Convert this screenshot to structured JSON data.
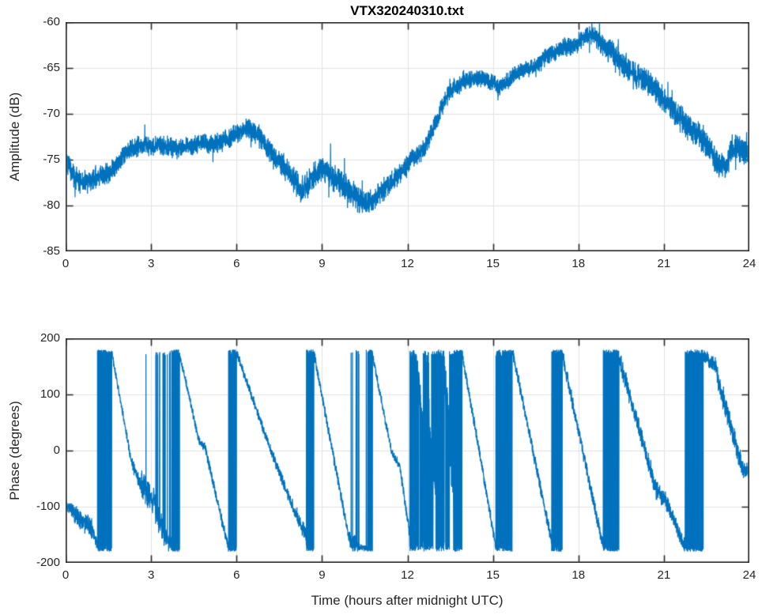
{
  "figure": {
    "title": "VTX320240310.txt",
    "background": "#ffffff",
    "axis_color": "#262626",
    "grid_color": "#e2e2e2",
    "trace_color": "#0072BD"
  },
  "chart_data": [
    {
      "type": "line",
      "title": "VTX320240310.txt",
      "xlabel": "",
      "ylabel": "Amplitude (dB)",
      "xlim": [
        0,
        24
      ],
      "ylim": [
        -85,
        -60
      ],
      "xticks": [
        0,
        3,
        6,
        9,
        12,
        15,
        18,
        21,
        24
      ],
      "yticks": [
        -85,
        -80,
        -75,
        -70,
        -65,
        -60
      ],
      "grid": true,
      "legend": null,
      "series_color": "#0072BD",
      "series_name": "amplitude",
      "trend_points": {
        "hours": [
          0,
          0.15,
          0.35,
          0.6,
          0.9,
          1.2,
          1.5,
          1.8,
          2.1,
          2.4,
          2.7,
          3.0,
          3.3,
          3.6,
          3.9,
          4.2,
          4.5,
          4.8,
          5.1,
          5.4,
          5.7,
          6.0,
          6.3,
          6.6,
          6.9,
          7.2,
          7.5,
          7.8,
          8.1,
          8.3,
          8.5,
          8.7,
          9.0,
          9.2,
          9.5,
          9.8,
          10.1,
          10.4,
          10.6,
          10.9,
          11.2,
          11.5,
          11.8,
          12.1,
          12.4,
          12.6,
          12.8,
          13.0,
          13.2,
          13.4,
          13.6,
          13.9,
          14.2,
          14.5,
          14.8,
          15.0,
          15.2,
          15.4,
          15.6,
          15.8,
          16.0,
          16.3,
          16.6,
          16.9,
          17.2,
          17.5,
          17.8,
          18.0,
          18.2,
          18.45,
          18.6,
          18.8,
          19.0,
          19.2,
          19.4,
          19.6,
          19.8,
          20.0,
          20.3,
          20.6,
          20.9,
          21.2,
          21.5,
          21.8,
          22.1,
          22.4,
          22.7,
          23.0,
          23.2,
          23.4,
          23.6,
          23.8,
          24.0
        ],
        "db": [
          -74.5,
          -76.0,
          -77.0,
          -77.6,
          -77.2,
          -76.8,
          -76.5,
          -75.5,
          -74.3,
          -73.7,
          -73.4,
          -73.6,
          -73.3,
          -73.7,
          -73.9,
          -73.6,
          -73.4,
          -73.2,
          -73.3,
          -73.1,
          -72.7,
          -72.1,
          -71.7,
          -71.9,
          -72.8,
          -74.1,
          -75.2,
          -76.2,
          -77.5,
          -78.6,
          -77.8,
          -76.6,
          -75.8,
          -76.3,
          -77.2,
          -77.9,
          -78.7,
          -79.6,
          -79.9,
          -79.0,
          -78.2,
          -77.3,
          -76.3,
          -75.2,
          -74.4,
          -73.6,
          -72.4,
          -70.8,
          -69.3,
          -68.0,
          -67.2,
          -66.7,
          -66.3,
          -66.2,
          -66.3,
          -66.6,
          -67.2,
          -66.9,
          -66.1,
          -65.6,
          -65.3,
          -65.0,
          -64.5,
          -63.8,
          -63.3,
          -62.7,
          -62.6,
          -62.2,
          -61.7,
          -61.4,
          -61.7,
          -62.4,
          -63.0,
          -63.4,
          -64.2,
          -64.9,
          -65.2,
          -65.7,
          -66.3,
          -67.1,
          -68.1,
          -69.2,
          -70.3,
          -71.2,
          -71.9,
          -72.8,
          -74.2,
          -76.0,
          -75.6,
          -73.9,
          -73.8,
          -74.3,
          -74.2
        ]
      },
      "noise_band_db": {
        "hours": [
          0,
          2,
          6,
          8,
          10,
          12,
          14,
          16,
          18,
          19.5,
          21,
          23,
          24
        ],
        "halfwidth": [
          1.3,
          1.0,
          1.0,
          1.4,
          1.4,
          1.1,
          0.9,
          0.9,
          1.0,
          1.3,
          1.4,
          1.5,
          1.3
        ]
      }
    },
    {
      "type": "line",
      "title": "",
      "xlabel": "Time (hours after midnight UTC)",
      "ylabel": "Phase (degrees)",
      "xlim": [
        0,
        24
      ],
      "ylim": [
        -200,
        200
      ],
      "xticks": [
        0,
        3,
        6,
        9,
        12,
        15,
        18,
        21,
        24
      ],
      "yticks": [
        -200,
        -100,
        0,
        100,
        200
      ],
      "grid": true,
      "legend": null,
      "series_color": "#0072BD",
      "series_name": "phase",
      "wrap_degrees": 180,
      "segments": [
        {
          "type": "noise",
          "t0": 0.0,
          "t1": 0.3,
          "v0": -95,
          "v1": -110,
          "amp": 14
        },
        {
          "type": "noise",
          "t0": 0.3,
          "t1": 0.7,
          "v0": -112,
          "v1": -130,
          "amp": 20
        },
        {
          "type": "noise",
          "t0": 0.7,
          "t1": 0.95,
          "v0": -125,
          "v1": -142,
          "amp": 22
        },
        {
          "type": "ramp",
          "t0": 0.95,
          "t1": 1.12,
          "v0": -142,
          "v1": -170,
          "amp": 14
        },
        {
          "type": "band",
          "t0": 1.12,
          "t1": 1.62,
          "amp": 14
        },
        {
          "type": "ramp",
          "t0": 1.62,
          "t1": 2.3,
          "v0": 176,
          "v1": -18,
          "amp": 10
        },
        {
          "type": "ramp",
          "t0": 2.3,
          "t1": 2.62,
          "v0": -18,
          "v1": -60,
          "amp": 13
        },
        {
          "type": "spikes",
          "t0": 2.62,
          "t1": 3.15,
          "v0": -60,
          "v1": -95,
          "amp": 30,
          "p": 0.04
        },
        {
          "type": "spikes",
          "t0": 3.15,
          "t1": 3.5,
          "v0": -108,
          "v1": -152,
          "amp": 30,
          "p": 0.12
        },
        {
          "type": "spikes",
          "t0": 3.5,
          "t1": 3.73,
          "v0": -152,
          "v1": -170,
          "amp": 20,
          "p": 0.08
        },
        {
          "type": "band",
          "t0": 3.73,
          "t1": 4.0,
          "amp": 12
        },
        {
          "type": "ramp",
          "t0": 4.0,
          "t1": 4.68,
          "v0": 172,
          "v1": 18,
          "amp": 10
        },
        {
          "type": "noise",
          "t0": 4.68,
          "t1": 4.92,
          "v0": 18,
          "v1": 2,
          "amp": 10
        },
        {
          "type": "ramp",
          "t0": 4.92,
          "t1": 5.72,
          "v0": 0,
          "v1": -176,
          "amp": 12
        },
        {
          "type": "band",
          "t0": 5.72,
          "t1": 6.0,
          "amp": 13
        },
        {
          "type": "ramp",
          "t0": 6.0,
          "t1": 7.2,
          "v0": 175,
          "v1": 0,
          "amp": 10
        },
        {
          "type": "ramp",
          "t0": 7.2,
          "t1": 8.12,
          "v0": 0,
          "v1": -118,
          "amp": 12
        },
        {
          "type": "noise",
          "t0": 8.12,
          "t1": 8.45,
          "v0": -118,
          "v1": -152,
          "amp": 17
        },
        {
          "type": "band",
          "t0": 8.45,
          "t1": 8.72,
          "amp": 12
        },
        {
          "type": "ramp",
          "t0": 8.72,
          "t1": 9.95,
          "v0": 172,
          "v1": -158,
          "amp": 12
        },
        {
          "type": "spikes",
          "t0": 9.95,
          "t1": 10.3,
          "v0": -158,
          "v1": -172,
          "amp": 22,
          "p": 0.06
        },
        {
          "type": "noise",
          "t0": 10.3,
          "t1": 10.6,
          "v0": -172,
          "v1": -176,
          "amp": 7
        },
        {
          "type": "band",
          "t0": 10.6,
          "t1": 10.78,
          "amp": 10
        },
        {
          "type": "ramp",
          "t0": 10.78,
          "t1": 11.45,
          "v0": 168,
          "v1": -5,
          "amp": 10
        },
        {
          "type": "noise",
          "t0": 11.45,
          "t1": 11.72,
          "v0": -5,
          "v1": -25,
          "amp": 10
        },
        {
          "type": "ramp",
          "t0": 11.72,
          "t1": 12.08,
          "v0": -25,
          "v1": -150,
          "amp": 13
        },
        {
          "type": "band",
          "t0": 12.08,
          "t1": 12.32,
          "amp": 25
        },
        {
          "type": "spikes",
          "t0": 12.32,
          "t1": 12.55,
          "v0": 150,
          "v1": 40,
          "amp": 40,
          "p": 0.3
        },
        {
          "type": "band",
          "t0": 12.55,
          "t1": 12.75,
          "amp": 30
        },
        {
          "type": "spikes",
          "t0": 12.75,
          "t1": 13.0,
          "v0": 60,
          "v1": -80,
          "amp": 50,
          "p": 0.35
        },
        {
          "type": "band",
          "t0": 13.0,
          "t1": 13.3,
          "amp": 28
        },
        {
          "type": "spikes",
          "t0": 13.3,
          "t1": 13.6,
          "v0": 120,
          "v1": -40,
          "amp": 60,
          "p": 0.3
        },
        {
          "type": "band",
          "t0": 13.62,
          "t1": 13.92,
          "amp": 10
        },
        {
          "type": "ramp",
          "t0": 13.92,
          "t1": 15.1,
          "v0": 172,
          "v1": -170,
          "amp": 12
        },
        {
          "type": "band",
          "t0": 15.1,
          "t1": 15.68,
          "amp": 16
        },
        {
          "type": "ramp",
          "t0": 15.68,
          "t1": 17.06,
          "v0": 178,
          "v1": -162,
          "amp": 13
        },
        {
          "type": "band",
          "t0": 17.06,
          "t1": 17.42,
          "amp": 12
        },
        {
          "type": "ramp",
          "t0": 17.42,
          "t1": 18.88,
          "v0": 175,
          "v1": -176,
          "amp": 15
        },
        {
          "type": "band",
          "t0": 18.88,
          "t1": 19.38,
          "amp": 14
        },
        {
          "type": "ramp",
          "t0": 19.38,
          "t1": 20.75,
          "v0": 172,
          "v1": -72,
          "amp": 22
        },
        {
          "type": "noise",
          "t0": 20.75,
          "t1": 21.12,
          "v0": -72,
          "v1": -95,
          "amp": 20
        },
        {
          "type": "ramp",
          "t0": 21.12,
          "t1": 21.78,
          "v0": -95,
          "v1": -176,
          "amp": 18
        },
        {
          "type": "band",
          "t0": 21.78,
          "t1": 22.38,
          "amp": 14
        },
        {
          "type": "noise",
          "t0": 22.38,
          "t1": 22.78,
          "v0": 170,
          "v1": 152,
          "amp": 16
        },
        {
          "type": "ramp",
          "t0": 22.78,
          "t1": 23.7,
          "v0": 150,
          "v1": -22,
          "amp": 24
        },
        {
          "type": "noise",
          "t0": 23.7,
          "t1": 24.001,
          "v0": -28,
          "v1": -40,
          "amp": 20
        }
      ]
    }
  ]
}
